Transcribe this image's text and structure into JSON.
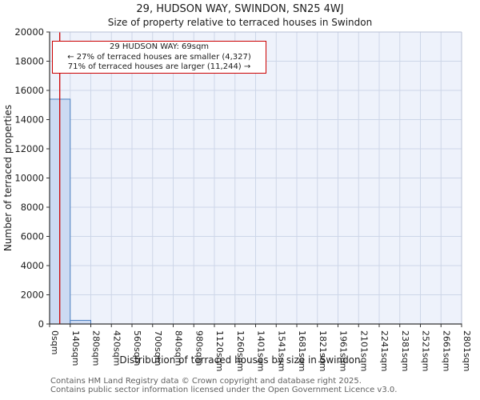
{
  "title": "29, HUDSON WAY, SWINDON, SN25 4WJ",
  "subtitle": "Size of property relative to terraced houses in Swindon",
  "chart_data": {
    "type": "bar",
    "title": "29, HUDSON WAY, SWINDON, SN25 4WJ",
    "subtitle": "Size of property relative to terraced houses in Swindon",
    "xlabel": "Distribution of terraced houses by size in Swindon",
    "ylabel": "Number of terraced properties",
    "x_tick_labels": [
      "0sqm",
      "140sqm",
      "280sqm",
      "420sqm",
      "560sqm",
      "700sqm",
      "840sqm",
      "980sqm",
      "1120sqm",
      "1260sqm",
      "1401sqm",
      "1541sqm",
      "1681sqm",
      "1821sqm",
      "1961sqm",
      "2101sqm",
      "2241sqm",
      "2381sqm",
      "2521sqm",
      "2661sqm",
      "2801sqm"
    ],
    "bin_width_sqm": 140,
    "values": [
      15400,
      250,
      0,
      0,
      0,
      0,
      0,
      0,
      0,
      0,
      0,
      0,
      0,
      0,
      0,
      0,
      0,
      0,
      0,
      0
    ],
    "ylim": [
      0,
      20000
    ],
    "y_tick_step": 2000,
    "grid": true,
    "legend": "none",
    "marker": {
      "value_sqm": 69,
      "label": "29 HUDSON WAY: 69sqm",
      "smaller_line": "← 27% of terraced houses are smaller (4,327)",
      "larger_line": "71% of terraced houses are larger (11,244) →",
      "color": "#cc0000"
    },
    "bar_fill": "#ccdaf2",
    "bar_stroke": "#4a7fc1",
    "plot_bg": "#eef2fb",
    "grid_color": "#cdd6e8"
  },
  "footer": {
    "line1": "Contains HM Land Registry data © Crown copyright and database right 2025.",
    "line2": "Contains public sector information licensed under the Open Government Licence v3.0."
  }
}
